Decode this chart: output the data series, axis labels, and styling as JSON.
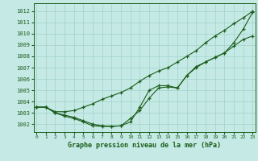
{
  "title": "Graphe pression niveau de la mer (hPa)",
  "xlabel_ticks": [
    0,
    1,
    2,
    3,
    4,
    5,
    6,
    7,
    8,
    9,
    10,
    11,
    12,
    13,
    14,
    15,
    16,
    17,
    18,
    19,
    20,
    21,
    22,
    23
  ],
  "ylim": [
    1001.3,
    1012.7
  ],
  "xlim": [
    -0.3,
    23.3
  ],
  "yticks": [
    1002,
    1003,
    1004,
    1005,
    1006,
    1007,
    1008,
    1009,
    1010,
    1011,
    1012
  ],
  "bg_color": "#c5eae5",
  "grid_color": "#a8d5cf",
  "line_color": "#1a5c1a",
  "line1": [
    1003.5,
    1003.5,
    1003.1,
    1003.1,
    1003.2,
    1003.5,
    1003.8,
    1004.2,
    1004.5,
    1004.8,
    1005.2,
    1005.8,
    1006.3,
    1006.7,
    1007.0,
    1007.5,
    1008.0,
    1008.5,
    1009.2,
    1009.8,
    1010.3,
    1010.9,
    1011.4,
    1012.0
  ],
  "line2": [
    1003.5,
    1003.5,
    1003.0,
    1002.8,
    1002.6,
    1002.3,
    1002.0,
    1001.85,
    1001.8,
    1001.85,
    1002.5,
    1003.2,
    1004.3,
    1005.2,
    1005.3,
    1005.2,
    1006.3,
    1007.0,
    1007.5,
    1007.9,
    1008.3,
    1008.9,
    1009.5,
    1009.8
  ],
  "line3": [
    1003.5,
    1003.5,
    1003.0,
    1002.7,
    1002.5,
    1002.2,
    1001.85,
    1001.8,
    1001.8,
    1001.85,
    1002.2,
    1003.5,
    1005.0,
    1005.4,
    1005.4,
    1005.2,
    1006.3,
    1007.1,
    1007.5,
    1007.9,
    1008.3,
    1009.2,
    1010.4,
    1011.9
  ]
}
